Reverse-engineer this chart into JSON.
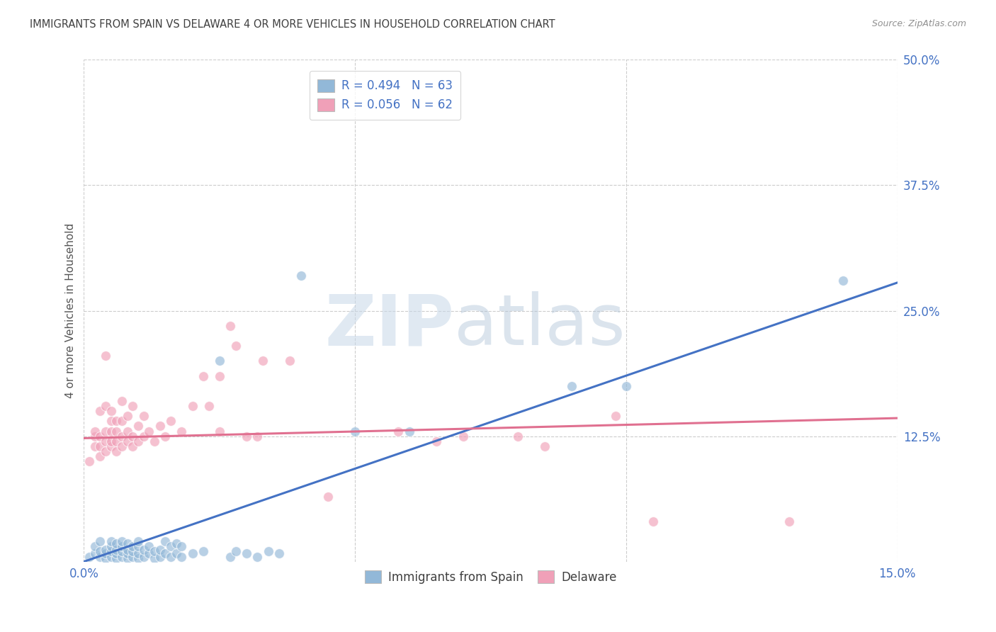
{
  "title": "IMMIGRANTS FROM SPAIN VS DELAWARE 4 OR MORE VEHICLES IN HOUSEHOLD CORRELATION CHART",
  "source": "Source: ZipAtlas.com",
  "ylabel": "4 or more Vehicles in Household",
  "bottom_legend": [
    "Immigrants from Spain",
    "Delaware"
  ],
  "blue_color": "#92b8d8",
  "pink_color": "#f0a0b8",
  "blue_line_color": "#4472c4",
  "pink_line_color": "#e07090",
  "legend_blue_label": "R = 0.494   N = 63",
  "legend_pink_label": "R = 0.056   N = 62",
  "background_color": "#ffffff",
  "grid_color": "#cccccc",
  "title_color": "#404040",
  "source_color": "#909090",
  "axis_label_color": "#4472c4",
  "blue_scatter": [
    [
      0.001,
      0.005
    ],
    [
      0.002,
      0.008
    ],
    [
      0.002,
      0.015
    ],
    [
      0.003,
      0.005
    ],
    [
      0.003,
      0.01
    ],
    [
      0.003,
      0.02
    ],
    [
      0.004,
      0.003
    ],
    [
      0.004,
      0.008
    ],
    [
      0.004,
      0.012
    ],
    [
      0.005,
      0.005
    ],
    [
      0.005,
      0.01
    ],
    [
      0.005,
      0.015
    ],
    [
      0.005,
      0.02
    ],
    [
      0.006,
      0.003
    ],
    [
      0.006,
      0.008
    ],
    [
      0.006,
      0.012
    ],
    [
      0.006,
      0.018
    ],
    [
      0.007,
      0.005
    ],
    [
      0.007,
      0.01
    ],
    [
      0.007,
      0.015
    ],
    [
      0.007,
      0.02
    ],
    [
      0.008,
      0.003
    ],
    [
      0.008,
      0.008
    ],
    [
      0.008,
      0.012
    ],
    [
      0.008,
      0.018
    ],
    [
      0.009,
      0.005
    ],
    [
      0.009,
      0.01
    ],
    [
      0.009,
      0.015
    ],
    [
      0.01,
      0.003
    ],
    [
      0.01,
      0.008
    ],
    [
      0.01,
      0.015
    ],
    [
      0.01,
      0.02
    ],
    [
      0.011,
      0.005
    ],
    [
      0.011,
      0.012
    ],
    [
      0.012,
      0.008
    ],
    [
      0.012,
      0.015
    ],
    [
      0.013,
      0.003
    ],
    [
      0.013,
      0.01
    ],
    [
      0.014,
      0.005
    ],
    [
      0.014,
      0.012
    ],
    [
      0.015,
      0.008
    ],
    [
      0.015,
      0.02
    ],
    [
      0.016,
      0.005
    ],
    [
      0.016,
      0.015
    ],
    [
      0.017,
      0.008
    ],
    [
      0.017,
      0.018
    ],
    [
      0.018,
      0.005
    ],
    [
      0.018,
      0.015
    ],
    [
      0.02,
      0.008
    ],
    [
      0.022,
      0.01
    ],
    [
      0.025,
      0.2
    ],
    [
      0.027,
      0.005
    ],
    [
      0.028,
      0.01
    ],
    [
      0.03,
      0.008
    ],
    [
      0.032,
      0.005
    ],
    [
      0.034,
      0.01
    ],
    [
      0.036,
      0.008
    ],
    [
      0.04,
      0.285
    ],
    [
      0.05,
      0.13
    ],
    [
      0.06,
      0.13
    ],
    [
      0.09,
      0.175
    ],
    [
      0.1,
      0.175
    ],
    [
      0.14,
      0.28
    ]
  ],
  "pink_scatter": [
    [
      0.001,
      0.1
    ],
    [
      0.002,
      0.115
    ],
    [
      0.002,
      0.125
    ],
    [
      0.002,
      0.13
    ],
    [
      0.003,
      0.105
    ],
    [
      0.003,
      0.115
    ],
    [
      0.003,
      0.125
    ],
    [
      0.003,
      0.15
    ],
    [
      0.004,
      0.11
    ],
    [
      0.004,
      0.12
    ],
    [
      0.004,
      0.13
    ],
    [
      0.004,
      0.155
    ],
    [
      0.004,
      0.205
    ],
    [
      0.005,
      0.115
    ],
    [
      0.005,
      0.12
    ],
    [
      0.005,
      0.13
    ],
    [
      0.005,
      0.14
    ],
    [
      0.005,
      0.15
    ],
    [
      0.006,
      0.11
    ],
    [
      0.006,
      0.12
    ],
    [
      0.006,
      0.13
    ],
    [
      0.006,
      0.14
    ],
    [
      0.007,
      0.115
    ],
    [
      0.007,
      0.125
    ],
    [
      0.007,
      0.14
    ],
    [
      0.007,
      0.16
    ],
    [
      0.008,
      0.12
    ],
    [
      0.008,
      0.13
    ],
    [
      0.008,
      0.145
    ],
    [
      0.009,
      0.115
    ],
    [
      0.009,
      0.125
    ],
    [
      0.009,
      0.155
    ],
    [
      0.01,
      0.12
    ],
    [
      0.01,
      0.135
    ],
    [
      0.011,
      0.125
    ],
    [
      0.011,
      0.145
    ],
    [
      0.012,
      0.13
    ],
    [
      0.013,
      0.12
    ],
    [
      0.014,
      0.135
    ],
    [
      0.015,
      0.125
    ],
    [
      0.016,
      0.14
    ],
    [
      0.018,
      0.13
    ],
    [
      0.02,
      0.155
    ],
    [
      0.022,
      0.185
    ],
    [
      0.023,
      0.155
    ],
    [
      0.025,
      0.13
    ],
    [
      0.025,
      0.185
    ],
    [
      0.027,
      0.235
    ],
    [
      0.028,
      0.215
    ],
    [
      0.03,
      0.125
    ],
    [
      0.032,
      0.125
    ],
    [
      0.033,
      0.2
    ],
    [
      0.038,
      0.2
    ],
    [
      0.045,
      0.065
    ],
    [
      0.058,
      0.13
    ],
    [
      0.065,
      0.12
    ],
    [
      0.07,
      0.125
    ],
    [
      0.08,
      0.125
    ],
    [
      0.085,
      0.115
    ],
    [
      0.098,
      0.145
    ],
    [
      0.105,
      0.04
    ],
    [
      0.13,
      0.04
    ]
  ],
  "blue_line": [
    [
      0.0,
      0.0
    ],
    [
      0.15,
      0.278
    ]
  ],
  "pink_line": [
    [
      0.0,
      0.123
    ],
    [
      0.15,
      0.143
    ]
  ],
  "xlim": [
    0.0,
    0.15
  ],
  "ylim": [
    0.0,
    0.5
  ],
  "x_tick_positions": [
    0.0,
    0.05,
    0.1,
    0.15
  ],
  "x_tick_labels": [
    "0.0%",
    "",
    "",
    "15.0%"
  ],
  "y_tick_positions": [
    0.125,
    0.25,
    0.375,
    0.5
  ],
  "y_tick_labels": [
    "12.5%",
    "25.0%",
    "37.5%",
    "50.0%"
  ]
}
